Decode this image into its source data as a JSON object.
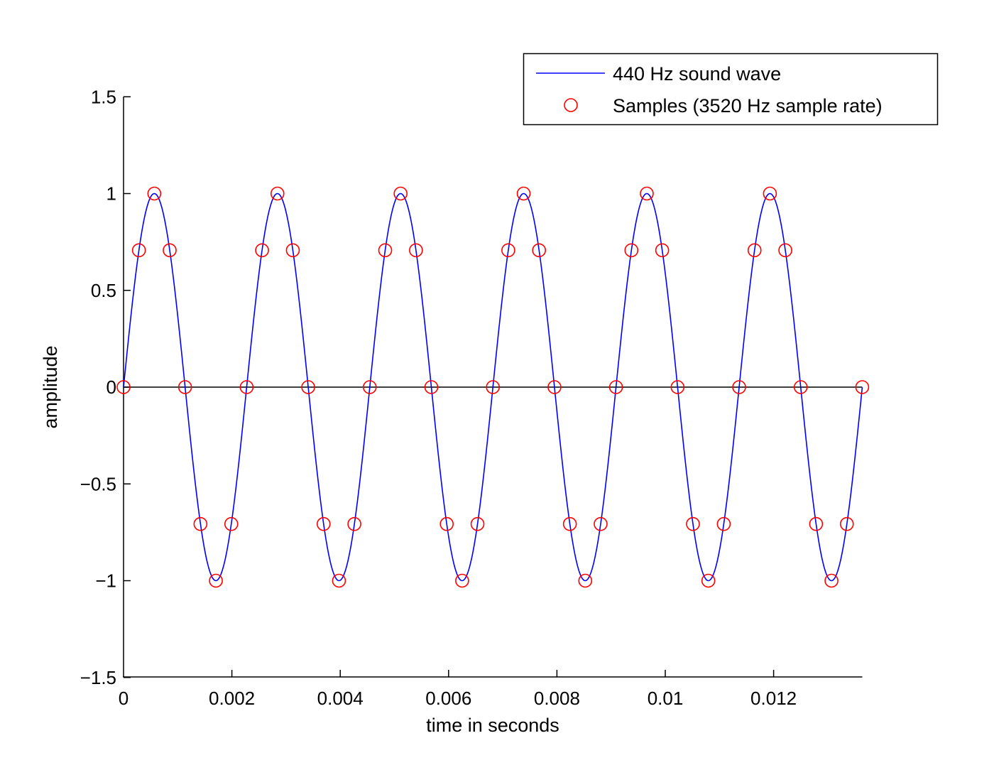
{
  "chart_data": {
    "type": "line",
    "title": "",
    "xlabel": "time in seconds",
    "ylabel": "amplitude",
    "xlim": [
      0,
      0.013636
    ],
    "ylim": [
      -1.5,
      1.5
    ],
    "grid": false,
    "legend_position": "upper right",
    "x_ticks": [
      0,
      0.002,
      0.004,
      0.006,
      0.008,
      0.01,
      0.012
    ],
    "x_tick_labels": [
      "0",
      "0.002",
      "0.004",
      "0.006",
      "0.008",
      "0.01",
      "0.012"
    ],
    "y_ticks": [
      1.5,
      1,
      0.5,
      0,
      -0.5,
      -1,
      -1.5
    ],
    "y_tick_labels": [
      "1.5",
      "1",
      "0.5",
      "0",
      "−0.5",
      "−1",
      "−1.5"
    ],
    "series": [
      {
        "name": "440 Hz sound wave",
        "style": "line",
        "color": "#0000ff",
        "frequency_hz": 440,
        "function": "sin(2*pi*440*t)",
        "t_start": 0,
        "t_end": 0.013636
      },
      {
        "name": "Samples (3520 Hz sample rate)",
        "style": "markers",
        "marker": "circle-open",
        "color": "#ff0000",
        "sample_rate_hz": 3520,
        "x": [
          0,
          0.000284,
          0.000568,
          0.000852,
          0.001136,
          0.00142,
          0.001705,
          0.001989,
          0.002273,
          0.002557,
          0.002841,
          0.003125,
          0.003409,
          0.003693,
          0.003977,
          0.004261,
          0.004545,
          0.00483,
          0.005114,
          0.005398,
          0.005682,
          0.005966,
          0.00625,
          0.006534,
          0.006818,
          0.007102,
          0.007386,
          0.00767,
          0.007955,
          0.008239,
          0.008523,
          0.008807,
          0.009091,
          0.009375,
          0.009659,
          0.009943,
          0.010227,
          0.010511,
          0.010795,
          0.01108,
          0.011364,
          0.011648,
          0.011932,
          0.012216,
          0.0125,
          0.012784,
          0.013068,
          0.013352,
          0.013636
        ],
        "values": [
          0,
          0.707,
          1,
          0.707,
          0,
          -0.707,
          -1,
          -0.707,
          0,
          0.707,
          1,
          0.707,
          0,
          -0.707,
          -1,
          -0.707,
          0,
          0.707,
          1,
          0.707,
          0,
          -0.707,
          -1,
          -0.707,
          0,
          0.707,
          1,
          0.707,
          0,
          -0.707,
          -1,
          -0.707,
          0,
          0.707,
          1,
          0.707,
          0,
          -0.707,
          -1,
          -0.707,
          0,
          0.707,
          1,
          0.707,
          0,
          -0.707,
          -1,
          -0.707,
          0
        ]
      }
    ],
    "reference_lines": [
      {
        "type": "horizontal",
        "y": 0,
        "color": "#000000",
        "x_start": 0,
        "x_end": 0.013636
      }
    ]
  },
  "legend": {
    "items": [
      {
        "label": "440 Hz sound wave",
        "symbol": "line",
        "color": "#0000ff"
      },
      {
        "label": "Samples (3520 Hz sample rate)",
        "symbol": "circle",
        "color": "#ff0000"
      }
    ]
  }
}
